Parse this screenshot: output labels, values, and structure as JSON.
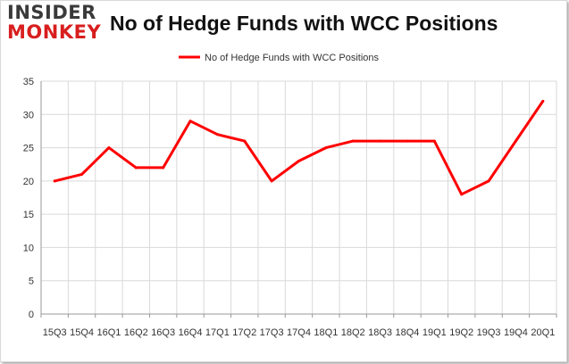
{
  "brand": {
    "logo_top": "INSIDER",
    "logo_bottom": "MONKEY"
  },
  "chart_data": {
    "type": "line",
    "title": "No of Hedge Funds with WCC Positions",
    "xlabel": "",
    "ylabel": "",
    "categories": [
      "15Q3",
      "15Q4",
      "16Q1",
      "16Q2",
      "16Q3",
      "16Q4",
      "17Q1",
      "17Q2",
      "17Q3",
      "17Q4",
      "18Q1",
      "18Q2",
      "18Q3",
      "18Q4",
      "19Q1",
      "19Q2",
      "19Q3",
      "19Q4",
      "20Q1"
    ],
    "series": [
      {
        "name": "No of Hedge Funds with WCC Positions",
        "color": "#ff0000",
        "values": [
          20,
          21,
          25,
          22,
          22,
          29,
          27,
          26,
          20,
          23,
          25,
          26,
          26,
          26,
          26,
          18,
          20,
          26,
          32
        ]
      }
    ],
    "ylim": [
      0,
      35
    ],
    "yticks": [
      0,
      5,
      10,
      15,
      20,
      25,
      30,
      35
    ],
    "grid": true,
    "legend_position": "top-center"
  }
}
